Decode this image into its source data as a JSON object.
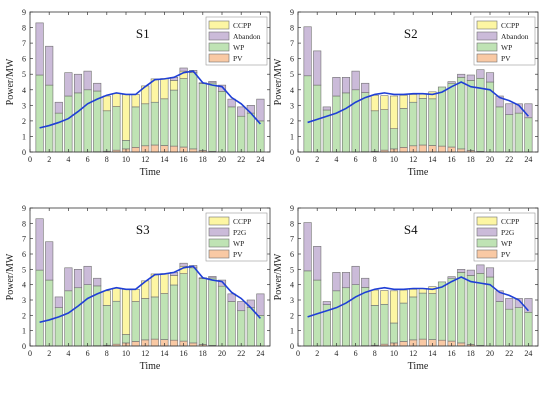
{
  "colors": {
    "PV": "#f9c9a4",
    "WP": "#bfe3b4",
    "CCPP": "#fdf6a3",
    "Abandon": "#cbbbd9",
    "P2G": "#cbbbd9",
    "line": "#1f3fd6",
    "edge": "#707070"
  },
  "chart_data": [
    {
      "type": "bar",
      "title": "S1",
      "xlabel": "Time",
      "ylabel": "Power/MW",
      "ylim": [
        0,
        9
      ],
      "xlim": [
        0,
        25
      ],
      "xticks": [
        "0",
        "2",
        "4",
        "6",
        "8",
        "10",
        "12",
        "14",
        "16",
        "18",
        "20",
        "22",
        "24"
      ],
      "yticks": [
        "0",
        "1",
        "2",
        "3",
        "4",
        "5",
        "6",
        "7",
        "8",
        "9"
      ],
      "legend": [
        "CCPP",
        "Abandon",
        "WP",
        "PV"
      ],
      "legend_position": "top-right",
      "categories": [
        1,
        2,
        3,
        4,
        5,
        6,
        7,
        8,
        9,
        10,
        11,
        12,
        13,
        14,
        15,
        16,
        17,
        18,
        19,
        20,
        21,
        22,
        23,
        24
      ],
      "series": [
        {
          "name": "PV",
          "values": [
            0,
            0,
            0,
            0,
            0,
            0,
            0.02,
            0.05,
            0.12,
            0.2,
            0.3,
            0.4,
            0.45,
            0.42,
            0.38,
            0.32,
            0.2,
            0.1,
            0.04,
            0,
            0,
            0,
            0,
            0
          ]
        },
        {
          "name": "WP",
          "values": [
            4.95,
            4.3,
            2.5,
            3.6,
            3.8,
            4.0,
            3.9,
            2.6,
            2.8,
            0.55,
            2.6,
            2.7,
            2.75,
            3.0,
            3.6,
            4.4,
            4.9,
            4.3,
            4.4,
            3.9,
            2.9,
            2.3,
            2.5,
            2.0
          ]
        },
        {
          "name": "CCPP",
          "values": [
            0,
            0,
            0,
            0,
            0,
            0,
            0,
            0.95,
            0.85,
            2.95,
            0.8,
            1.15,
            1.5,
            1.3,
            0.62,
            0.48,
            0,
            0,
            0,
            0,
            0,
            0,
            0,
            0
          ]
        },
        {
          "name": "Abandon",
          "values": [
            3.35,
            2.5,
            0.7,
            1.5,
            1.2,
            1.2,
            0.5,
            0,
            0,
            0,
            0,
            0,
            0,
            0,
            0.2,
            0.2,
            0.15,
            0.05,
            0.1,
            0.4,
            0.5,
            0.6,
            0.5,
            1.4
          ]
        }
      ],
      "load": [
        1.55,
        1.7,
        1.9,
        2.15,
        2.6,
        3.1,
        3.4,
        3.65,
        3.8,
        3.7,
        3.7,
        4.2,
        4.65,
        4.7,
        4.8,
        5.1,
        5.2,
        4.45,
        4.3,
        4.2,
        3.5,
        3.1,
        2.5,
        1.8
      ]
    },
    {
      "type": "bar",
      "title": "S2",
      "xlabel": "Time",
      "ylabel": "Power/MW",
      "ylim": [
        0,
        9
      ],
      "xlim": [
        0,
        25
      ],
      "xticks": [
        "0",
        "2",
        "4",
        "6",
        "8",
        "10",
        "12",
        "14",
        "16",
        "18",
        "20",
        "22",
        "24"
      ],
      "yticks": [
        "0",
        "1",
        "2",
        "3",
        "4",
        "5",
        "6",
        "7",
        "8",
        "9"
      ],
      "legend": [
        "CCPP",
        "Abandon",
        "WP",
        "PV"
      ],
      "legend_position": "top-right",
      "categories": [
        1,
        2,
        3,
        4,
        5,
        6,
        7,
        8,
        9,
        10,
        11,
        12,
        13,
        14,
        15,
        16,
        17,
        18,
        19,
        20,
        21,
        22,
        23,
        24
      ],
      "series": [
        {
          "name": "PV",
          "values": [
            0,
            0,
            0,
            0,
            0,
            0,
            0.02,
            0.05,
            0.12,
            0.2,
            0.3,
            0.4,
            0.45,
            0.42,
            0.38,
            0.32,
            0.2,
            0.1,
            0.04,
            0,
            0,
            0,
            0,
            0
          ]
        },
        {
          "name": "WP",
          "values": [
            4.9,
            4.3,
            2.7,
            3.6,
            3.8,
            4.0,
            3.8,
            2.6,
            2.6,
            1.3,
            2.5,
            2.8,
            3.0,
            3.0,
            3.8,
            4.1,
            4.6,
            4.5,
            4.7,
            4.5,
            2.9,
            2.4,
            2.5,
            2.2
          ]
        },
        {
          "name": "CCPP",
          "values": [
            0,
            0,
            0,
            0,
            0,
            0,
            0,
            1.0,
            0.9,
            2.1,
            0.85,
            0.5,
            0.3,
            0.45,
            0,
            0,
            0,
            0,
            0,
            0,
            0,
            0,
            0,
            0
          ]
        },
        {
          "name": "Abandon",
          "values": [
            3.15,
            2.2,
            0.2,
            1.2,
            1.0,
            1.2,
            0.6,
            0,
            0,
            0,
            0,
            0,
            0,
            0,
            0,
            0.1,
            0.2,
            0.35,
            0.55,
            0.6,
            0.7,
            0.7,
            0.6,
            0.9
          ]
        }
      ],
      "load": [
        1.9,
        2.1,
        2.3,
        2.5,
        2.8,
        3.2,
        3.5,
        3.7,
        3.8,
        3.7,
        3.7,
        3.75,
        3.75,
        3.7,
        3.85,
        4.2,
        4.5,
        4.2,
        4.1,
        4.0,
        3.5,
        3.3,
        3.0,
        2.3
      ]
    },
    {
      "type": "bar",
      "title": "S3",
      "xlabel": "Time",
      "ylabel": "Power/MW",
      "ylim": [
        0,
        9
      ],
      "xlim": [
        0,
        25
      ],
      "xticks": [
        "0",
        "2",
        "4",
        "6",
        "8",
        "10",
        "12",
        "14",
        "16",
        "18",
        "20",
        "22",
        "24"
      ],
      "yticks": [
        "0",
        "1",
        "2",
        "3",
        "4",
        "5",
        "6",
        "7",
        "8",
        "9"
      ],
      "legend": [
        "CCPP",
        "P2G",
        "WP",
        "PV"
      ],
      "legend_position": "top-right",
      "categories": [
        1,
        2,
        3,
        4,
        5,
        6,
        7,
        8,
        9,
        10,
        11,
        12,
        13,
        14,
        15,
        16,
        17,
        18,
        19,
        20,
        21,
        22,
        23,
        24
      ],
      "series": [
        {
          "name": "PV",
          "values": [
            0,
            0,
            0,
            0,
            0,
            0,
            0.02,
            0.05,
            0.12,
            0.2,
            0.3,
            0.4,
            0.45,
            0.42,
            0.38,
            0.32,
            0.2,
            0.1,
            0.04,
            0,
            0,
            0,
            0,
            0
          ]
        },
        {
          "name": "WP",
          "values": [
            4.95,
            4.3,
            2.5,
            3.6,
            3.8,
            4.0,
            3.9,
            2.6,
            2.8,
            0.55,
            2.6,
            2.7,
            2.75,
            3.0,
            3.6,
            4.4,
            4.9,
            4.3,
            4.4,
            3.9,
            2.9,
            2.3,
            2.5,
            2.0
          ]
        },
        {
          "name": "CCPP",
          "values": [
            0,
            0,
            0,
            0,
            0,
            0,
            0,
            0.95,
            0.85,
            2.95,
            0.8,
            1.15,
            1.5,
            1.3,
            0.62,
            0.48,
            0,
            0,
            0,
            0,
            0,
            0,
            0,
            0
          ]
        },
        {
          "name": "P2G",
          "values": [
            3.35,
            2.5,
            0.7,
            1.5,
            1.2,
            1.2,
            0.5,
            0,
            0,
            0,
            0,
            0,
            0,
            0,
            0.2,
            0.2,
            0.15,
            0.05,
            0.1,
            0.4,
            0.5,
            0.6,
            0.5,
            1.4
          ]
        }
      ],
      "load": [
        1.55,
        1.7,
        1.9,
        2.15,
        2.6,
        3.1,
        3.4,
        3.65,
        3.8,
        3.7,
        3.7,
        4.2,
        4.65,
        4.7,
        4.8,
        5.1,
        5.2,
        4.45,
        4.3,
        4.2,
        3.5,
        3.1,
        2.5,
        1.8
      ]
    },
    {
      "type": "bar",
      "title": "S4",
      "xlabel": "Time",
      "ylabel": "Power/MW",
      "ylim": [
        0,
        9
      ],
      "xlim": [
        0,
        25
      ],
      "xticks": [
        "0",
        "2",
        "4",
        "6",
        "8",
        "10",
        "12",
        "14",
        "16",
        "18",
        "20",
        "22",
        "24"
      ],
      "yticks": [
        "0",
        "1",
        "2",
        "3",
        "4",
        "5",
        "6",
        "7",
        "8",
        "9"
      ],
      "legend": [
        "CCPP",
        "P2G",
        "WP",
        "PV"
      ],
      "legend_position": "top-right",
      "categories": [
        1,
        2,
        3,
        4,
        5,
        6,
        7,
        8,
        9,
        10,
        11,
        12,
        13,
        14,
        15,
        16,
        17,
        18,
        19,
        20,
        21,
        22,
        23,
        24
      ],
      "series": [
        {
          "name": "PV",
          "values": [
            0,
            0,
            0,
            0,
            0,
            0,
            0.02,
            0.05,
            0.12,
            0.2,
            0.3,
            0.4,
            0.45,
            0.42,
            0.38,
            0.32,
            0.2,
            0.1,
            0.04,
            0,
            0,
            0,
            0,
            0
          ]
        },
        {
          "name": "WP",
          "values": [
            4.9,
            4.3,
            2.7,
            3.6,
            3.8,
            4.0,
            3.8,
            2.6,
            2.6,
            1.3,
            2.5,
            2.8,
            3.0,
            3.0,
            3.8,
            4.1,
            4.6,
            4.5,
            4.7,
            4.5,
            2.9,
            2.4,
            2.5,
            2.2
          ]
        },
        {
          "name": "CCPP",
          "values": [
            0,
            0,
            0,
            0,
            0,
            0,
            0,
            1.0,
            0.9,
            2.1,
            0.85,
            0.5,
            0.3,
            0.45,
            0,
            0,
            0,
            0,
            0,
            0,
            0,
            0,
            0,
            0
          ]
        },
        {
          "name": "P2G",
          "values": [
            3.15,
            2.2,
            0.2,
            1.2,
            1.0,
            1.2,
            0.6,
            0,
            0,
            0,
            0,
            0,
            0,
            0,
            0,
            0.1,
            0.2,
            0.35,
            0.55,
            0.6,
            0.7,
            0.7,
            0.6,
            0.9
          ]
        }
      ],
      "load": [
        1.9,
        2.1,
        2.3,
        2.5,
        2.8,
        3.2,
        3.5,
        3.7,
        3.8,
        3.7,
        3.7,
        3.75,
        3.75,
        3.7,
        3.85,
        4.2,
        4.5,
        4.2,
        4.1,
        4.0,
        3.5,
        3.3,
        3.0,
        2.3
      ]
    }
  ]
}
